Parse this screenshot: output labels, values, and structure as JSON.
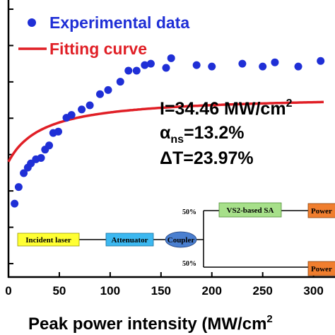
{
  "chart_data": {
    "type": "scatter",
    "xlabel": "Peak power intensity (MW/cm",
    "xlabel_sup": "2",
    "xlim": [
      0,
      310
    ],
    "ylim": [
      0,
      1
    ],
    "x_ticks": [
      0,
      50,
      100,
      150,
      200,
      250,
      300
    ],
    "y_tick_count": 8,
    "grid": false,
    "legend_position": "top-left",
    "series": [
      {
        "name": "Experimental data",
        "kind": "points",
        "color": "#1f2fd6",
        "points": [
          [
            6,
            0.265
          ],
          [
            10,
            0.325
          ],
          [
            15,
            0.375
          ],
          [
            19,
            0.395
          ],
          [
            22,
            0.41
          ],
          [
            27,
            0.425
          ],
          [
            32,
            0.43
          ],
          [
            36,
            0.46
          ],
          [
            40,
            0.475
          ],
          [
            44,
            0.52
          ],
          [
            49,
            0.525
          ],
          [
            57,
            0.575
          ],
          [
            62,
            0.585
          ],
          [
            72,
            0.605
          ],
          [
            80,
            0.62
          ],
          [
            90,
            0.66
          ],
          [
            98,
            0.675
          ],
          [
            110,
            0.705
          ],
          [
            118,
            0.745
          ],
          [
            126,
            0.745
          ],
          [
            134,
            0.765
          ],
          [
            140,
            0.77
          ],
          [
            155,
            0.755
          ],
          [
            160,
            0.79
          ],
          [
            185,
            0.765
          ],
          [
            200,
            0.76
          ],
          [
            230,
            0.77
          ],
          [
            250,
            0.76
          ],
          [
            262,
            0.775
          ],
          [
            285,
            0.76
          ],
          [
            307,
            0.78
          ]
        ]
      },
      {
        "name": "Fitting curve",
        "kind": "line",
        "color": "#e01f26",
        "model": "saturable_absorption",
        "I_sat": 34.46,
        "alpha_ns": 0.132,
        "delta_T": 0.2397,
        "T0": 0.6557
      }
    ],
    "annotations": {
      "intensity_label": "I=34.46 MW/cm",
      "intensity_sup": "2",
      "alpha_symbol": "α",
      "alpha_sub": "ns",
      "alpha_value": "=13.2%",
      "delta_label": "ΔT=23.97%"
    }
  },
  "inset": {
    "incident_laser": "Incident laser",
    "attenuator": "Attenuator",
    "coupler": "Coupler",
    "sa_label": "VS2-based SA",
    "power_top": "Power",
    "power_bottom": "Power",
    "split_top": "50%",
    "split_bottom": "50%",
    "colors": {
      "incident_laser": "#ffff33",
      "attenuator": "#3cb8f0",
      "coupler": "#4a7fd0",
      "sa": "#a7e08a",
      "power": "#f07e2e"
    }
  }
}
